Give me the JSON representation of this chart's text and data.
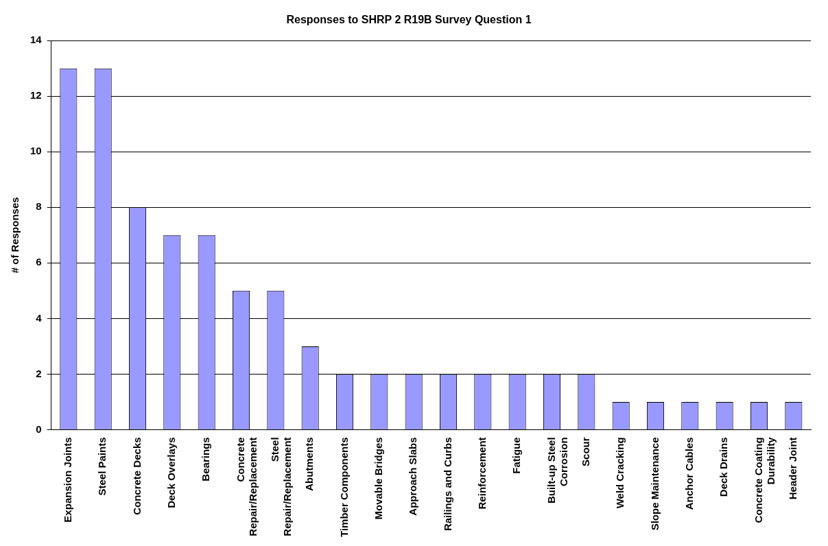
{
  "chart_data": {
    "type": "bar",
    "title": "Responses to SHRP 2 R19B Survey Question 1",
    "ylabel": "# of Responses",
    "categories": [
      "Expansion Joints",
      "Steel Paints",
      "Concrete Decks",
      "Deck Overlays",
      "Bearings",
      "Concrete Repair/Replacement",
      "Steel Repair/Replacement",
      "Abutments",
      "Timber Components",
      "Movable Bridges",
      "Approach Slabs",
      "Railings and Curbs",
      "Reinforcement",
      "Fatigue",
      "Built-up Steel Corrosion",
      "Scour",
      "Weld Cracking",
      "Slope Maintenance",
      "Anchor Cables",
      "Deck Drains",
      "Concrete Coating Durability",
      "Header Joint"
    ],
    "values": [
      13,
      13,
      8,
      7,
      7,
      5,
      5,
      3,
      2,
      2,
      2,
      2,
      2,
      2,
      2,
      2,
      1,
      1,
      1,
      1,
      1,
      1
    ],
    "color": "#9999ff",
    "ylim": [
      0,
      14
    ],
    "yticks": [
      0,
      2,
      4,
      6,
      8,
      10,
      12,
      14
    ],
    "grid": "y",
    "legend": false
  }
}
